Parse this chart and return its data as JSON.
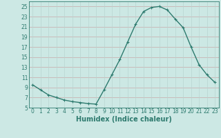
{
  "x": [
    0,
    1,
    2,
    3,
    4,
    5,
    6,
    7,
    8,
    9,
    10,
    11,
    12,
    13,
    14,
    15,
    16,
    17,
    18,
    19,
    20,
    21,
    22,
    23
  ],
  "y": [
    9.5,
    8.5,
    7.5,
    7.0,
    6.5,
    6.2,
    6.0,
    5.8,
    5.7,
    8.5,
    11.5,
    14.5,
    18.0,
    21.5,
    24.0,
    24.8,
    25.0,
    24.3,
    22.5,
    20.8,
    17.0,
    13.5,
    11.5,
    10.0
  ],
  "line_color": "#2d7a6e",
  "marker": "+",
  "markersize": 3,
  "linewidth": 1.0,
  "bg_color": "#cce8e4",
  "grid_color_h": "#c8a8a8",
  "grid_color_v": "#b8d4d0",
  "xlabel": "Humidex (Indice chaleur)",
  "xlim": [
    -0.5,
    23.5
  ],
  "ylim": [
    5,
    26
  ],
  "xticks": [
    0,
    1,
    2,
    3,
    4,
    5,
    6,
    7,
    8,
    9,
    10,
    11,
    12,
    13,
    14,
    15,
    16,
    17,
    18,
    19,
    20,
    21,
    22,
    23
  ],
  "yticks": [
    5,
    7,
    9,
    11,
    13,
    15,
    17,
    19,
    21,
    23,
    25
  ],
  "font_color": "#2d7a6e",
  "tick_fontsize": 5.5,
  "xlabel_fontsize": 7.0
}
